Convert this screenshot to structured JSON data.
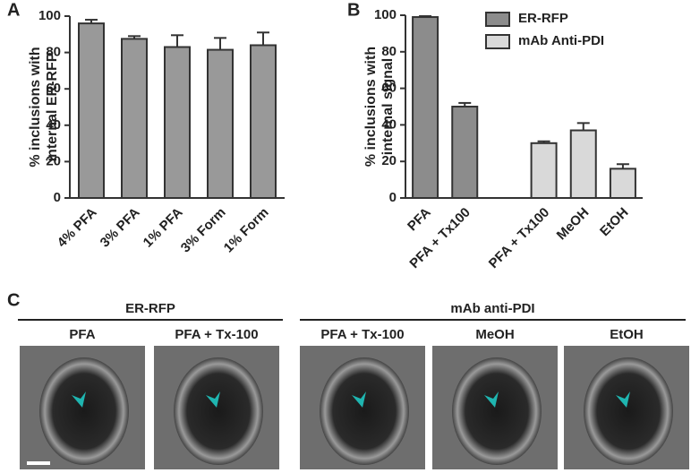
{
  "panel_labels": [
    "A",
    "B",
    "C"
  ],
  "chart_data": [
    {
      "type": "bar",
      "ylabel": [
        "% inclusions with",
        "internal ER-RFP"
      ],
      "categories": [
        "4% PFA",
        "3% PFA",
        "1% PFA",
        "3% Form",
        "1% Form"
      ],
      "values": [
        96,
        87.5,
        83,
        81.5,
        84
      ],
      "errors": [
        2,
        1.5,
        6.5,
        6.5,
        7
      ],
      "color": "#999999",
      "ylim": [
        0,
        100
      ],
      "yticks": [
        0,
        20,
        40,
        60,
        80,
        100
      ]
    },
    {
      "type": "bar",
      "ylabel": [
        "% inclusions with",
        "internal signal"
      ],
      "categories": [
        "PFA",
        "PFA + Tx100",
        null,
        "PFA + Tx100",
        "MeOH",
        "EtOH"
      ],
      "series": [
        {
          "name": "ER-RFP",
          "color": "#8c8c8c",
          "values": [
            99,
            50,
            null,
            null,
            null,
            null
          ],
          "errors": [
            0.5,
            2,
            null,
            null,
            null,
            null
          ]
        },
        {
          "name": "mAb Anti-PDI",
          "color": "#d9d9d9",
          "values": [
            null,
            null,
            null,
            30,
            37,
            16
          ],
          "errors": [
            null,
            null,
            null,
            1,
            4,
            2.5
          ]
        }
      ],
      "ylim": [
        0,
        100
      ],
      "yticks": [
        0,
        20,
        40,
        60,
        80,
        100
      ],
      "legend": "upper right"
    }
  ],
  "panel_c": {
    "groups": [
      "ER-RFP",
      "mAb anti-PDI"
    ],
    "images": [
      "PFA",
      "PFA + Tx-100",
      "PFA + Tx-100",
      "MeOH",
      "EtOH"
    ]
  }
}
